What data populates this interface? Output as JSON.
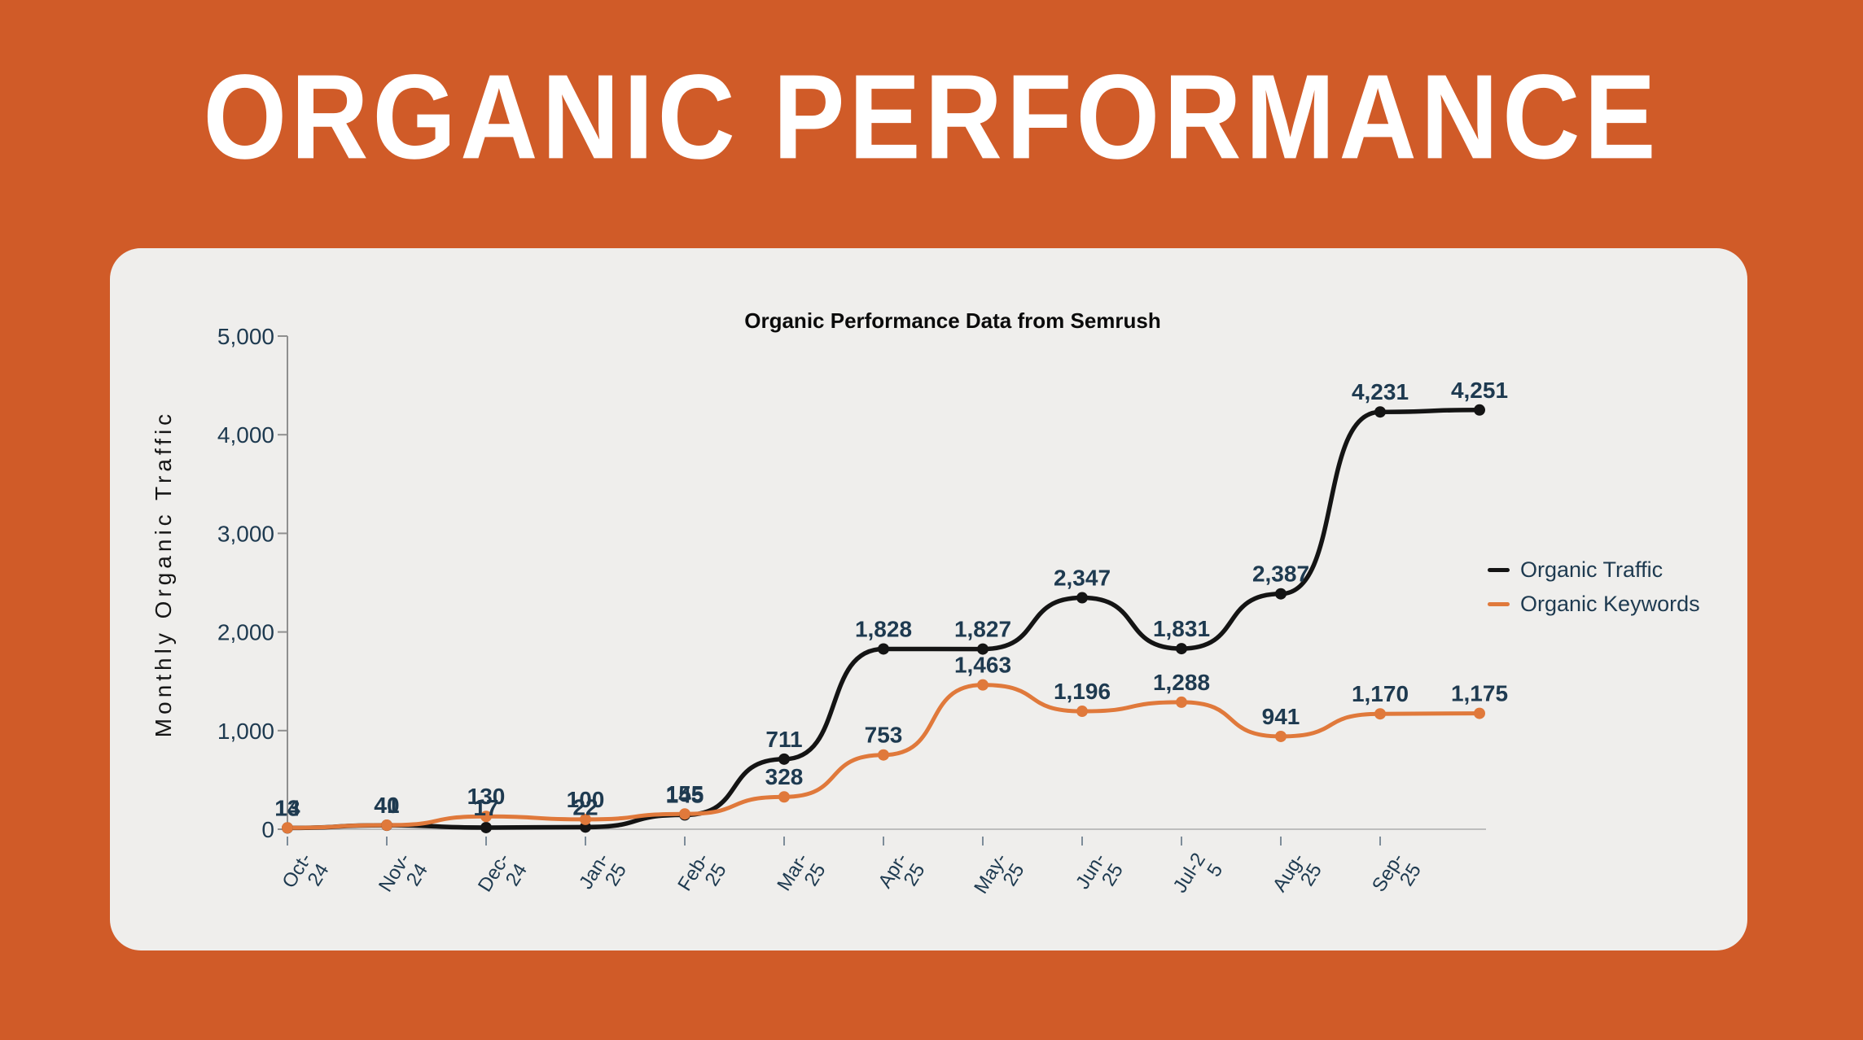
{
  "poster": {
    "title": "ORGANIC PERFORMANCE",
    "background_color": "#D05B28",
    "card_color": "#EFEEEC",
    "title_color": "#FFFFFF"
  },
  "chart_data": {
    "type": "line",
    "title": "Organic Performance Data from Semrush",
    "ylabel": "Monthly Organic Traffic",
    "ylim": [
      0,
      5000
    ],
    "yticks": [
      0,
      1000,
      2000,
      3000,
      4000,
      5000
    ],
    "ytick_labels": [
      "0",
      "1,000",
      "2,000",
      "3,000",
      "4,000",
      "5,000"
    ],
    "categories": [
      "Oct-24",
      "Nov-24",
      "Dec-24",
      "Jan-25",
      "Feb-25",
      "Mar-25",
      "Apr-25",
      "May-25",
      "Jun-25",
      "Jul-25",
      "Aug-25",
      "Sep-25"
    ],
    "x_tick_display": [
      "Oct-\n24",
      "Nov-\n24",
      "Dec-\n24",
      "Jan-\n25",
      "Feb-\n25",
      "Mar-\n25",
      "Apr-\n25",
      "May-\n25",
      "Jun-\n25",
      "Jul-2\n5",
      "Aug-\n25",
      "Sep-\n25"
    ],
    "note": "series contain 13 points; the 13th point has no visible axis label",
    "grid": false,
    "legend_position": "right",
    "label_color": "#1E3A50",
    "axis_color": "#8F8F8F",
    "series": [
      {
        "name": "Organic Traffic",
        "color": "#141414",
        "values": [
          13,
          40,
          17,
          22,
          145,
          711,
          1828,
          1827,
          2347,
          1831,
          2387,
          4231,
          4251
        ]
      },
      {
        "name": "Organic Keywords",
        "color": "#E0793B",
        "values": [
          14,
          41,
          130,
          100,
          155,
          328,
          753,
          1463,
          1196,
          1288,
          941,
          1170,
          1175
        ]
      }
    ]
  }
}
